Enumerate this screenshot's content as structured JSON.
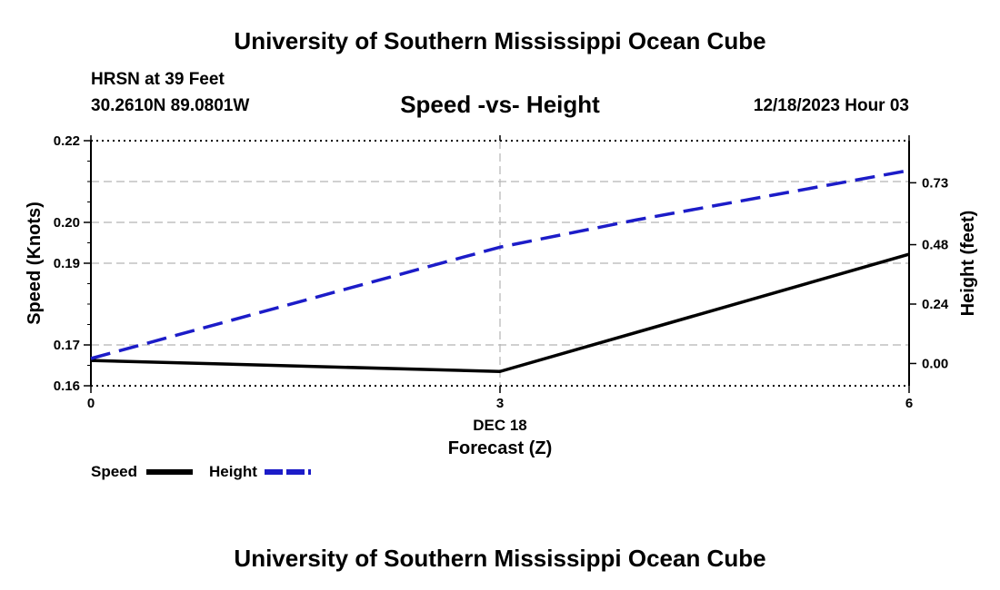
{
  "header": {
    "title": "University of Southern Mississippi Ocean Cube",
    "station": "HRSN at 39 Feet",
    "coords": "30.2610N  89.0801W",
    "chart_title": "Speed -vs- Height",
    "datetime": "12/18/2023 Hour 03"
  },
  "footer": {
    "title": "University of Southern Mississippi Ocean Cube"
  },
  "legend": {
    "speed": "Speed",
    "height": "Height"
  },
  "colors": {
    "speed": "#000000",
    "height": "#1c1cc8",
    "grid": "#b4b4b4"
  },
  "chart_data": {
    "type": "line",
    "title": "Speed -vs- Height",
    "xlabel": "Forecast (Z)",
    "xsublabel": "DEC 18",
    "ylabel": "Speed (Knots)",
    "y2label": "Height (feet)",
    "xlim": [
      0,
      6
    ],
    "x_ticks": [
      {
        "value": 0,
        "label": "0"
      },
      {
        "value": 3,
        "label": "3"
      },
      {
        "value": 6,
        "label": "6"
      }
    ],
    "ylim": [
      0.16,
      0.22
    ],
    "y_ticks": [
      {
        "value": 0.16,
        "label": "0.16"
      },
      {
        "value": 0.17,
        "label": "0.17"
      },
      {
        "value": 0.19,
        "label": "0.19"
      },
      {
        "value": 0.2,
        "label": "0.20"
      },
      {
        "value": 0.22,
        "label": "0.22"
      }
    ],
    "y2lim": [
      -0.09,
      0.9
    ],
    "y2_ticks": [
      {
        "value": 0.0,
        "label": "0.00"
      },
      {
        "value": 0.24,
        "label": "0.24"
      },
      {
        "value": 0.48,
        "label": "0.48"
      },
      {
        "value": 0.73,
        "label": "0.73"
      }
    ],
    "gridlines_y": [
      0.17,
      0.19,
      0.2,
      0.21
    ],
    "gridlines_x": [
      3
    ],
    "series": [
      {
        "name": "Speed",
        "axis": "left",
        "style": "solid",
        "x": [
          0,
          3,
          6
        ],
        "y": [
          0.1662,
          0.1635,
          0.1922
        ]
      },
      {
        "name": "Height",
        "axis": "right",
        "style": "dashed",
        "x": [
          0,
          1,
          2,
          3,
          4,
          5,
          6
        ],
        "y": [
          0.02,
          0.17,
          0.32,
          0.47,
          0.58,
          0.68,
          0.78
        ]
      }
    ]
  }
}
